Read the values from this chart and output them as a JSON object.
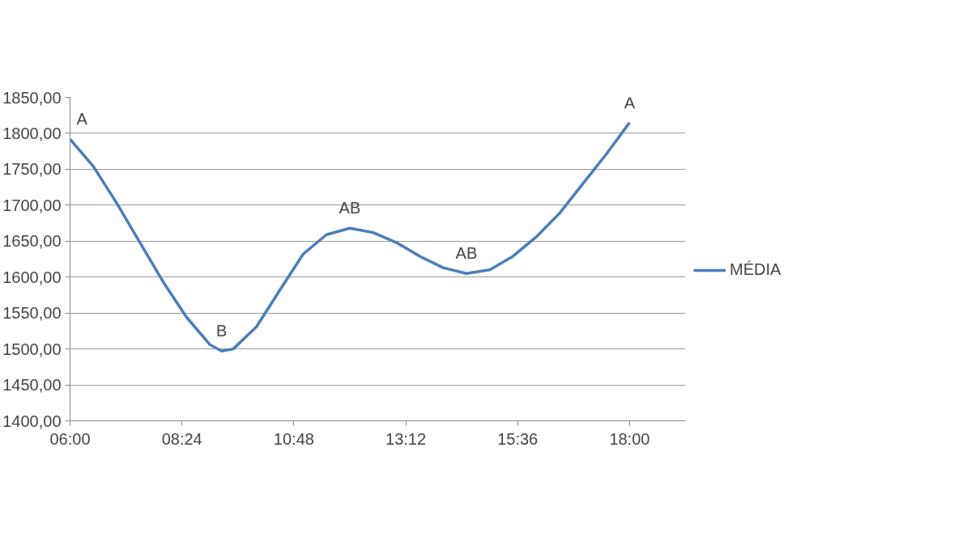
{
  "chart_data": {
    "type": "line",
    "x": [
      6,
      6.5,
      7,
      7.5,
      8,
      8.5,
      9,
      9.25,
      9.5,
      10,
      10.5,
      11,
      11.5,
      12,
      12.5,
      13,
      13.5,
      14,
      14.5,
      15,
      15.5,
      16,
      16.5,
      17,
      17.5,
      18
    ],
    "series": [
      {
        "name": "MÉDIA",
        "color": "#4a7ebb",
        "values": [
          1792,
          1754,
          1703,
          1648,
          1593,
          1544,
          1506,
          1497,
          1500,
          1531,
          1582,
          1632,
          1659,
          1668,
          1662,
          1648,
          1629,
          1613,
          1605,
          1610,
          1629,
          1656,
          1689,
          1730,
          1771,
          1815
        ]
      }
    ],
    "xlim": [
      6,
      19.2
    ],
    "ylim": [
      1400,
      1850
    ],
    "xticks": [
      {
        "value": 6,
        "label": "06:00"
      },
      {
        "value": 8.4,
        "label": "08:24"
      },
      {
        "value": 10.8,
        "label": "10:48"
      },
      {
        "value": 13.2,
        "label": "13:12"
      },
      {
        "value": 15.6,
        "label": "15:36"
      },
      {
        "value": 18,
        "label": "18:00"
      }
    ],
    "yticks": [
      {
        "value": 1400,
        "label": "1400,00"
      },
      {
        "value": 1450,
        "label": "1450,00"
      },
      {
        "value": 1500,
        "label": "1500,00"
      },
      {
        "value": 1550,
        "label": "1550,00"
      },
      {
        "value": 1600,
        "label": "1600,00"
      },
      {
        "value": 1650,
        "label": "1650,00"
      },
      {
        "value": 1700,
        "label": "1700,00"
      },
      {
        "value": 1750,
        "label": "1750,00"
      },
      {
        "value": 1800,
        "label": "1800,00"
      },
      {
        "value": 1850,
        "label": "1850,00"
      }
    ],
    "annotations": [
      {
        "text": "A",
        "x": 6,
        "y": 1792
      },
      {
        "text": "B",
        "x": 9.25,
        "y": 1497
      },
      {
        "text": "AB",
        "x": 12,
        "y": 1668
      },
      {
        "text": "AB",
        "x": 14.5,
        "y": 1605
      },
      {
        "text": "A",
        "x": 18,
        "y": 1815
      }
    ],
    "grid": "y",
    "legend": "right",
    "marker": "none",
    "line_style": "solid"
  }
}
